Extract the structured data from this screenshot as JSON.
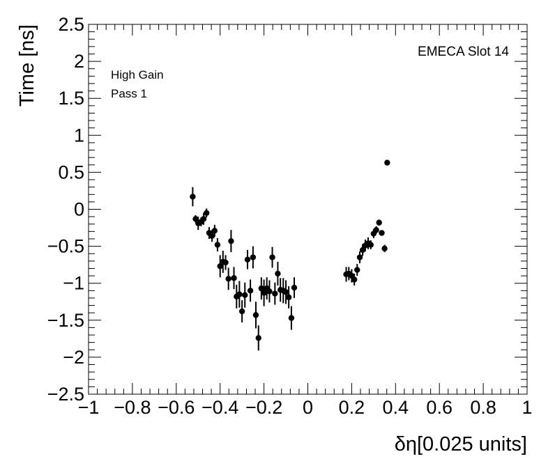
{
  "chart_data": {
    "type": "scatter",
    "title": "",
    "xlabel": "δη[0.025 units]",
    "ylabel": "Time [ns]",
    "xlim": [
      -1,
      1
    ],
    "ylim": [
      -2.5,
      2.5
    ],
    "xticks": [
      -1,
      -0.8,
      -0.6,
      -0.4,
      -0.2,
      0,
      0.2,
      0.4,
      0.6,
      0.8,
      1
    ],
    "xtick_labels": [
      "−1",
      "−0.8",
      "−0.6",
      "−0.4",
      "−0.2",
      "0",
      "0.2",
      "0.4",
      "0.6",
      "0.8",
      "1"
    ],
    "yticks": [
      -2.5,
      -2,
      -1.5,
      -1,
      -0.5,
      0,
      0.5,
      1,
      1.5,
      2,
      2.5
    ],
    "ytick_labels": [
      "−2.5",
      "−2",
      "−1.5",
      "−1",
      "−0.5",
      "0",
      "0.5",
      "1",
      "1.5",
      "2",
      "2.5"
    ],
    "annotations": {
      "gain": "High Gain",
      "pass": "Pass 1",
      "slot": "EMECA Slot 14"
    },
    "marker_color": "#000000",
    "points": [
      {
        "x": -0.525,
        "y": 0.17,
        "err": 0.13
      },
      {
        "x": -0.512,
        "y": -0.13,
        "err": 0.05
      },
      {
        "x": -0.5,
        "y": -0.19,
        "err": 0.09
      },
      {
        "x": -0.487,
        "y": -0.17,
        "err": 0.06
      },
      {
        "x": -0.475,
        "y": -0.13,
        "err": 0.08
      },
      {
        "x": -0.462,
        "y": -0.05,
        "err": 0.06
      },
      {
        "x": -0.45,
        "y": -0.32,
        "err": 0.08
      },
      {
        "x": -0.437,
        "y": -0.36,
        "err": 0.08
      },
      {
        "x": -0.425,
        "y": -0.29,
        "err": 0.08
      },
      {
        "x": -0.412,
        "y": -0.48,
        "err": 0.09
      },
      {
        "x": -0.4,
        "y": -0.77,
        "err": 0.15
      },
      {
        "x": -0.387,
        "y": -0.71,
        "err": 0.15
      },
      {
        "x": -0.375,
        "y": -0.72,
        "err": 0.1
      },
      {
        "x": -0.362,
        "y": -0.94,
        "err": 0.15
      },
      {
        "x": -0.35,
        "y": -0.43,
        "err": 0.15
      },
      {
        "x": -0.337,
        "y": -0.93,
        "err": 0.15
      },
      {
        "x": -0.325,
        "y": -1.18,
        "err": 0.16
      },
      {
        "x": -0.312,
        "y": -1.15,
        "err": 0.18
      },
      {
        "x": -0.3,
        "y": -1.38,
        "err": 0.15
      },
      {
        "x": -0.287,
        "y": -1.16,
        "err": 0.17
      },
      {
        "x": -0.275,
        "y": -0.68,
        "err": 0.13
      },
      {
        "x": -0.262,
        "y": -1.1,
        "err": 0.15
      },
      {
        "x": -0.25,
        "y": -0.65,
        "err": 0.15
      },
      {
        "x": -0.237,
        "y": -1.43,
        "err": 0.18
      },
      {
        "x": -0.225,
        "y": -1.74,
        "err": 0.17
      },
      {
        "x": -0.212,
        "y": -1.07,
        "err": 0.15
      },
      {
        "x": -0.2,
        "y": -1.13,
        "err": 0.18
      },
      {
        "x": -0.187,
        "y": -1.07,
        "err": 0.15
      },
      {
        "x": -0.175,
        "y": -1.11,
        "err": 0.15
      },
      {
        "x": -0.162,
        "y": -0.65,
        "err": 0.14
      },
      {
        "x": -0.15,
        "y": -1.14,
        "err": 0.15
      },
      {
        "x": -0.137,
        "y": -0.87,
        "err": 0.16
      },
      {
        "x": -0.125,
        "y": -1.09,
        "err": 0.16
      },
      {
        "x": -0.112,
        "y": -1.1,
        "err": 0.17
      },
      {
        "x": -0.1,
        "y": -1.12,
        "err": 0.16
      },
      {
        "x": -0.087,
        "y": -1.19,
        "err": 0.15
      },
      {
        "x": -0.075,
        "y": -1.47,
        "err": 0.16
      },
      {
        "x": -0.062,
        "y": -1.06,
        "err": 0.14
      },
      {
        "x": 0.175,
        "y": -0.88,
        "err": 0.1
      },
      {
        "x": 0.187,
        "y": -0.87,
        "err": 0.09
      },
      {
        "x": 0.2,
        "y": -0.9,
        "err": 0.09
      },
      {
        "x": 0.212,
        "y": -0.95,
        "err": 0.08
      },
      {
        "x": 0.225,
        "y": -0.82,
        "err": 0.08
      },
      {
        "x": 0.237,
        "y": -0.65,
        "err": 0.08
      },
      {
        "x": 0.25,
        "y": -0.55,
        "err": 0.08
      },
      {
        "x": 0.262,
        "y": -0.49,
        "err": 0.08
      },
      {
        "x": 0.275,
        "y": -0.46,
        "err": 0.08
      },
      {
        "x": 0.287,
        "y": -0.48,
        "err": 0.06
      },
      {
        "x": 0.3,
        "y": -0.33,
        "err": 0.06
      },
      {
        "x": 0.312,
        "y": -0.28,
        "err": 0.05
      },
      {
        "x": 0.325,
        "y": -0.18,
        "err": 0.04
      },
      {
        "x": 0.337,
        "y": -0.32,
        "err": 0.03
      },
      {
        "x": 0.35,
        "y": -0.53,
        "err": 0.05
      },
      {
        "x": 0.362,
        "y": 0.63,
        "err": 0.03
      }
    ]
  }
}
